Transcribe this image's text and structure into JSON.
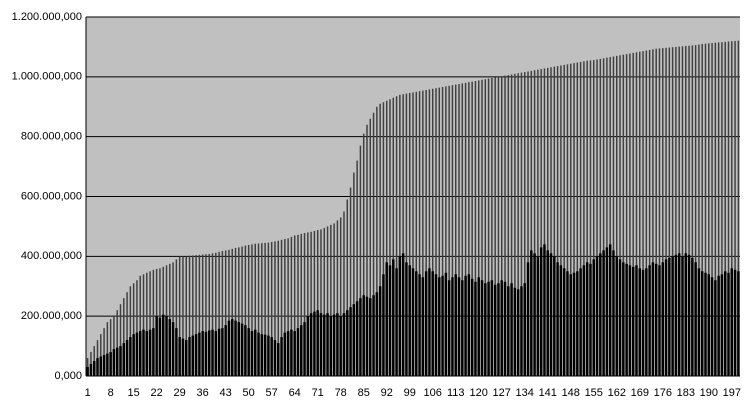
{
  "chart_data": {
    "type": "bar",
    "plot_background": "#c0c0c0",
    "grid": true,
    "categories": [
      "1",
      null,
      null,
      null,
      null,
      null,
      null,
      "8",
      null,
      null,
      null,
      null,
      null,
      null,
      "15",
      null,
      null,
      null,
      null,
      null,
      null,
      "22",
      null,
      null,
      null,
      null,
      null,
      null,
      "29",
      null,
      null,
      null,
      null,
      null,
      null,
      "36",
      null,
      null,
      null,
      null,
      null,
      null,
      "43",
      null,
      null,
      null,
      null,
      null,
      null,
      "50",
      null,
      null,
      null,
      null,
      null,
      null,
      "57",
      null,
      null,
      null,
      null,
      null,
      null,
      "64",
      null,
      null,
      null,
      null,
      null,
      null,
      "71",
      null,
      null,
      null,
      null,
      null,
      null,
      "78",
      null,
      null,
      null,
      null,
      null,
      null,
      "85",
      null,
      null,
      null,
      null,
      null,
      null,
      "92",
      null,
      null,
      null,
      null,
      null,
      null,
      "99",
      null,
      null,
      null,
      null,
      null,
      null,
      "106",
      null,
      null,
      null,
      null,
      null,
      null,
      "113",
      null,
      null,
      null,
      null,
      null,
      null,
      "120",
      null,
      null,
      null,
      null,
      null,
      null,
      "127",
      null,
      null,
      null,
      null,
      null,
      null,
      "134",
      null,
      null,
      null,
      null,
      null,
      null,
      "141",
      null,
      null,
      null,
      null,
      null,
      null,
      "148",
      null,
      null,
      null,
      null,
      null,
      null,
      "155",
      null,
      null,
      null,
      null,
      null,
      null,
      "162",
      null,
      null,
      null,
      null,
      null,
      null,
      "169",
      null,
      null,
      null,
      null,
      null,
      null,
      "176",
      null,
      null,
      null,
      null,
      null,
      null,
      "183",
      null,
      null,
      null,
      null,
      null,
      null,
      "190",
      null,
      null,
      null,
      null,
      null,
      null,
      "197",
      null,
      null
    ],
    "series": [
      {
        "color": "#404040",
        "values": [
          60000000.0,
          80000000.0,
          100000000.0,
          120000000.0,
          140000000.0,
          160000000.0,
          180000000.0,
          190000000.0,
          200000000.0,
          220000000.0,
          240000000.0,
          260000000.0,
          280000000.0,
          300000000.0,
          310000000.0,
          320000000.0,
          335000000.0,
          340000000.0,
          345000000.0,
          350000000.0,
          355000000.0,
          358000000.0,
          360000000.0,
          365000000.0,
          370000000.0,
          375000000.0,
          380000000.0,
          390000000.0,
          400000000.0,
          400000000.0,
          400000000.0,
          402000000.0,
          403000000.0,
          404000000.0,
          405000000.0,
          406000000.0,
          407000000.0,
          408000000.0,
          410000000.0,
          412000000.0,
          415000000.0,
          418000000.0,
          420000000.0,
          422000000.0,
          425000000.0,
          428000000.0,
          430000000.0,
          433000000.0,
          436000000.0,
          438000000.0,
          440000000.0,
          442000000.0,
          443000000.0,
          444000000.0,
          445000000.0,
          446000000.0,
          448000000.0,
          450000000.0,
          452000000.0,
          455000000.0,
          458000000.0,
          460000000.0,
          465000000.0,
          470000000.0,
          472000000.0,
          475000000.0,
          478000000.0,
          480000000.0,
          482000000.0,
          485000000.0,
          488000000.0,
          490000000.0,
          495000000.0,
          500000000.0,
          505000000.0,
          510000000.0,
          520000000.0,
          530000000.0,
          550000000.0,
          590000000.0,
          630000000.0,
          680000000.0,
          720000000.0,
          770000000.0,
          810000000.0,
          840000000.0,
          860000000.0,
          880000000.0,
          900000000.0,
          910000000.0,
          915000000.0,
          920000000.0,
          925000000.0,
          930000000.0,
          935000000.0,
          940000000.0,
          942000000.0,
          944000000.0,
          946000000.0,
          948000000.0,
          950000000.0,
          952000000.0,
          954000000.0,
          956000000.0,
          958000000.0,
          960000000.0,
          962000000.0,
          964000000.0,
          966000000.0,
          968000000.0,
          970000000.0,
          972000000.0,
          974000000.0,
          976000000.0,
          978000000.0,
          980000000.0,
          982000000.0,
          984000000.0,
          986000000.0,
          988000000.0,
          990000000.0,
          992000000.0,
          994000000.0,
          996000000.0,
          998000000.0,
          1000000000.0,
          1002000000.0,
          1004000000.0,
          1006000000.0,
          1008000000.0,
          1010000000.0,
          1012000000.0,
          1014000000.0,
          1016000000.0,
          1018000000.0,
          1020000000.0,
          1022000000.0,
          1024000000.0,
          1026000000.0,
          1028000000.0,
          1030000000.0,
          1032000000.0,
          1034000000.0,
          1036000000.0,
          1038000000.0,
          1040000000.0,
          1042000000.0,
          1044000000.0,
          1046000000.0,
          1048000000.0,
          1050000000.0,
          1052000000.0,
          1054000000.0,
          1055000000.0,
          1056000000.0,
          1058000000.0,
          1060000000.0,
          1062000000.0,
          1064000000.0,
          1066000000.0,
          1068000000.0,
          1070000000.0,
          1072000000.0,
          1074000000.0,
          1076000000.0,
          1078000000.0,
          1080000000.0,
          1082000000.0,
          1084000000.0,
          1086000000.0,
          1088000000.0,
          1090000000.0,
          1092000000.0,
          1094000000.0,
          1095000000.0,
          1096000000.0,
          1097000000.0,
          1098000000.0,
          1099000000.0,
          1100000000.0,
          1101000000.0,
          1102000000.0,
          1103000000.0,
          1104000000.0,
          1105000000.0,
          1106000000.0,
          1108000000.0,
          1110000000.0,
          1111000000.0,
          1112000000.0,
          1113000000.0,
          1114000000.0,
          1115000000.0,
          1116000000.0,
          1117000000.0,
          1118000000.0,
          1119000000.0,
          1120000000.0,
          1121000000.0
        ]
      },
      {
        "color": "#000000",
        "values": [
          30000000.0,
          40000000.0,
          50000000.0,
          60000000.0,
          65000000.0,
          70000000.0,
          75000000.0,
          80000000.0,
          90000000.0,
          95000000.0,
          100000000.0,
          110000000.0,
          120000000.0,
          130000000.0,
          140000000.0,
          145000000.0,
          150000000.0,
          155000000.0,
          150000000.0,
          155000000.0,
          160000000.0,
          200000000.0,
          195000000.0,
          205000000.0,
          200000000.0,
          190000000.0,
          180000000.0,
          160000000.0,
          130000000.0,
          125000000.0,
          120000000.0,
          130000000.0,
          135000000.0,
          140000000.0,
          145000000.0,
          150000000.0,
          148000000.0,
          152000000.0,
          155000000.0,
          150000000.0,
          158000000.0,
          160000000.0,
          170000000.0,
          185000000.0,
          190000000.0,
          185000000.0,
          180000000.0,
          175000000.0,
          170000000.0,
          160000000.0,
          150000000.0,
          155000000.0,
          145000000.0,
          140000000.0,
          138000000.0,
          135000000.0,
          130000000.0,
          120000000.0,
          110000000.0,
          130000000.0,
          145000000.0,
          150000000.0,
          155000000.0,
          150000000.0,
          160000000.0,
          170000000.0,
          180000000.0,
          200000000.0,
          210000000.0,
          215000000.0,
          220000000.0,
          210000000.0,
          205000000.0,
          210000000.0,
          200000000.0,
          205000000.0,
          210000000.0,
          200000000.0,
          210000000.0,
          220000000.0,
          230000000.0,
          240000000.0,
          250000000.0,
          260000000.0,
          270000000.0,
          265000000.0,
          260000000.0,
          270000000.0,
          280000000.0,
          300000000.0,
          340000000.0,
          380000000.0,
          370000000.0,
          390000000.0,
          360000000.0,
          400000000.0,
          410000000.0,
          380000000.0,
          370000000.0,
          360000000.0,
          350000000.0,
          340000000.0,
          330000000.0,
          350000000.0,
          360000000.0,
          350000000.0,
          340000000.0,
          330000000.0,
          335000000.0,
          345000000.0,
          320000000.0,
          330000000.0,
          340000000.0,
          330000000.0,
          320000000.0,
          335000000.0,
          340000000.0,
          325000000.0,
          315000000.0,
          330000000.0,
          320000000.0,
          310000000.0,
          315000000.0,
          320000000.0,
          305000000.0,
          310000000.0,
          320000000.0,
          315000000.0,
          300000000.0,
          310000000.0,
          295000000.0,
          290000000.0,
          300000000.0,
          310000000.0,
          380000000.0,
          420000000.0,
          410000000.0,
          400000000.0,
          430000000.0,
          440000000.0,
          420000000.0,
          410000000.0,
          400000000.0,
          380000000.0,
          370000000.0,
          360000000.0,
          350000000.0,
          340000000.0,
          345000000.0,
          350000000.0,
          360000000.0,
          370000000.0,
          380000000.0,
          375000000.0,
          390000000.0,
          400000000.0,
          410000000.0,
          420000000.0,
          430000000.0,
          440000000.0,
          420000000.0,
          400000000.0,
          390000000.0,
          380000000.0,
          375000000.0,
          370000000.0,
          365000000.0,
          370000000.0,
          360000000.0,
          355000000.0,
          360000000.0,
          370000000.0,
          380000000.0,
          375000000.0,
          370000000.0,
          380000000.0,
          390000000.0,
          395000000.0,
          400000000.0,
          405000000.0,
          410000000.0,
          400000000.0,
          410000000.0,
          405000000.0,
          395000000.0,
          380000000.0,
          360000000.0,
          350000000.0,
          345000000.0,
          340000000.0,
          330000000.0,
          320000000.0,
          335000000.0,
          340000000.0,
          350000000.0,
          345000000.0,
          360000000.0,
          355000000.0,
          350000000.0
        ]
      }
    ],
    "ylim": [
      0,
      1200000000
    ],
    "yticks": [
      {
        "value": 0,
        "label": "0,000"
      },
      {
        "value": 200000000,
        "label": "200.000,000"
      },
      {
        "value": 400000000,
        "label": "400.000,000"
      },
      {
        "value": 600000000,
        "label": "600.000,000"
      },
      {
        "value": 800000000,
        "label": "800.000,000"
      },
      {
        "value": 1000000000,
        "label": "1.000.000,000"
      },
      {
        "value": 1200000000,
        "label": "1.200.000,000"
      }
    ]
  }
}
